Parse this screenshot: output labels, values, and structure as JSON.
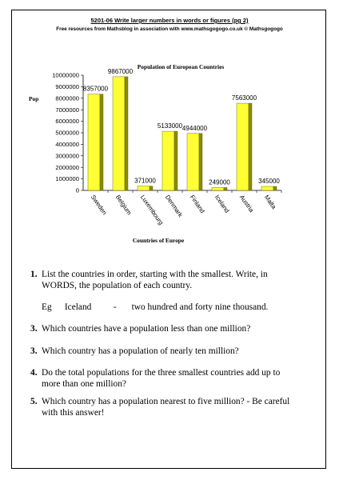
{
  "header": {
    "title": "5201-06    Write larger numbers in words or figures (pg 2)",
    "subtitle": "Free resources from Mathsblog in association with www.mathsgogogo.co.uk    © Mathsgogogo"
  },
  "chart_data": {
    "type": "bar",
    "title": "Population of European Countries",
    "xlabel": "Countries of Europe",
    "ylabel": "Pop",
    "categories": [
      "Sweden",
      "Belgium",
      "Luxembourg",
      "Denmark",
      "Finland",
      "Iceland",
      "Austria",
      "Malta"
    ],
    "values": [
      8357000,
      9867000,
      371000,
      5133000,
      4944000,
      249000,
      7563000,
      345000
    ],
    "data_labels": [
      "8357000",
      "9867000",
      "371000",
      "5133000",
      "4944000",
      "249000",
      "7563000",
      "345000"
    ],
    "ylim": [
      0,
      10000000
    ],
    "yticks": [
      0,
      1000000,
      2000000,
      3000000,
      4000000,
      5000000,
      6000000,
      7000000,
      8000000,
      9000000,
      10000000
    ],
    "ytick_labels": [
      "0",
      "1000000",
      "2000000",
      "3000000",
      "4000000",
      "5000000",
      "6000000",
      "7000000",
      "8000000",
      "9000000",
      "10000000"
    ],
    "bar_color": "#ffff33",
    "bar_side_color": "#8a8a00",
    "grid": false,
    "legend": "none"
  },
  "questions": [
    {
      "num": "1.",
      "text": "List the countries in order, starting with the smallest. Write, in WORDS, the population of each country."
    },
    {
      "num": "3.",
      "text": "Which countries have a population less than one million?"
    },
    {
      "num": "3.",
      "text": "Which country has a population of nearly ten million?"
    },
    {
      "num": "4.",
      "text": "Do the total populations for the three smallest countries add up to more than one million?"
    },
    {
      "num": "5.",
      "text": "Which country has a population nearest to five million? - Be careful with this answer!"
    }
  ],
  "example": {
    "prefix": "Eg",
    "country": "Iceland",
    "dash": "-",
    "words": "two hundred and forty nine thousand."
  }
}
